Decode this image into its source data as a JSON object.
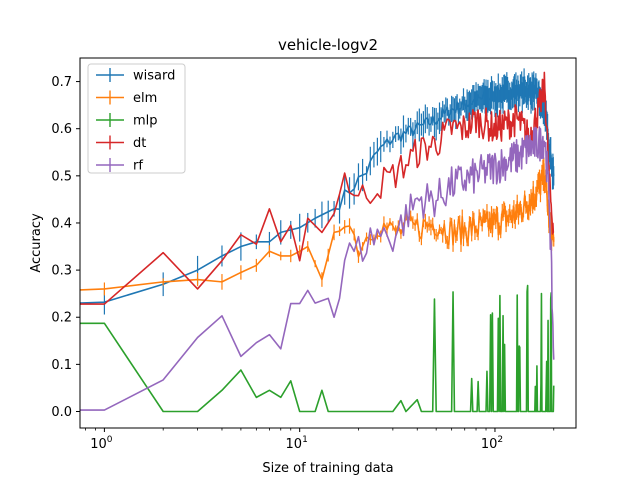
{
  "chart_data": {
    "type": "line",
    "title": "vehicle-logv2",
    "xlabel": "Size of training data",
    "ylabel": "Accuracy",
    "xscale": "log",
    "xlim": [
      0.75,
      260
    ],
    "ylim": [
      -0.035,
      0.75
    ],
    "x_ticks": [
      {
        "value": 1,
        "base": "10",
        "exp": "0"
      },
      {
        "value": 10,
        "base": "10",
        "exp": "1"
      },
      {
        "value": 100,
        "base": "10",
        "exp": "2"
      }
    ],
    "y_ticks": [
      0.0,
      0.1,
      0.2,
      0.3,
      0.4,
      0.5,
      0.6,
      0.7
    ],
    "y_tick_labels": [
      "0.0",
      "0.1",
      "0.2",
      "0.3",
      "0.4",
      "0.5",
      "0.6",
      "0.7"
    ],
    "grid": false,
    "legend_position": "upper-left",
    "series": [
      {
        "name": "wisard",
        "color": "#1f77b4",
        "anchors": [
          [
            0.75,
            0.23
          ],
          [
            1,
            0.232
          ],
          [
            2,
            0.27
          ],
          [
            3,
            0.3
          ],
          [
            4,
            0.33
          ],
          [
            5,
            0.35
          ],
          [
            6,
            0.36
          ],
          [
            7,
            0.36
          ],
          [
            8,
            0.38
          ],
          [
            10,
            0.39
          ],
          [
            12,
            0.41
          ],
          [
            15,
            0.43
          ],
          [
            18,
            0.47
          ],
          [
            22,
            0.51
          ],
          [
            25,
            0.55
          ],
          [
            30,
            0.58
          ],
          [
            40,
            0.6
          ],
          [
            50,
            0.62
          ],
          [
            60,
            0.64
          ],
          [
            80,
            0.66
          ],
          [
            100,
            0.67
          ],
          [
            130,
            0.68
          ],
          [
            160,
            0.68
          ],
          [
            180,
            0.64
          ],
          [
            190,
            0.55
          ],
          [
            200,
            0.5
          ]
        ],
        "noise_start": 16,
        "noise_amp": 0.015,
        "error_bar": 0.025
      },
      {
        "name": "elm",
        "color": "#ff7f0e",
        "anchors": [
          [
            0.75,
            0.258
          ],
          [
            1,
            0.26
          ],
          [
            2,
            0.275
          ],
          [
            3,
            0.28
          ],
          [
            4,
            0.275
          ],
          [
            5,
            0.295
          ],
          [
            6,
            0.31
          ],
          [
            7,
            0.34
          ],
          [
            8,
            0.33
          ],
          [
            9,
            0.33
          ],
          [
            10,
            0.34
          ],
          [
            11,
            0.35
          ],
          [
            13,
            0.28
          ],
          [
            15,
            0.38
          ],
          [
            17,
            0.42
          ],
          [
            20,
            0.35
          ],
          [
            25,
            0.4
          ],
          [
            30,
            0.38
          ],
          [
            40,
            0.39
          ],
          [
            50,
            0.4
          ],
          [
            60,
            0.38
          ],
          [
            80,
            0.39
          ],
          [
            100,
            0.4
          ],
          [
            130,
            0.42
          ],
          [
            160,
            0.46
          ],
          [
            180,
            0.5
          ],
          [
            190,
            0.4
          ],
          [
            200,
            0.36
          ]
        ],
        "noise_start": 16,
        "noise_amp": 0.03,
        "error_bar": 0.012
      },
      {
        "name": "mlp",
        "color": "#2ca02c",
        "anchors": [
          [
            0.75,
            0.187
          ],
          [
            1,
            0.187
          ],
          [
            2,
            0.0
          ],
          [
            3,
            0.0
          ],
          [
            4,
            0.045
          ],
          [
            5,
            0.088
          ],
          [
            6,
            0.03
          ],
          [
            7,
            0.045
          ],
          [
            8,
            0.03
          ],
          [
            9,
            0.065
          ],
          [
            10,
            0.0
          ],
          [
            12,
            0.0
          ],
          [
            13,
            0.045
          ],
          [
            14,
            0.0
          ],
          [
            20,
            0.0
          ],
          [
            30,
            0.0
          ],
          [
            33,
            0.023
          ],
          [
            35,
            0.0
          ],
          [
            40,
            0.025
          ],
          [
            42,
            0.0
          ],
          [
            200,
            0.055
          ]
        ],
        "spikes": [
          [
            44,
            0.26
          ],
          [
            47,
            0.1
          ],
          [
            52,
            0.24
          ],
          [
            56,
            0.15
          ],
          [
            60,
            0.28
          ],
          [
            66,
            0.22
          ],
          [
            72,
            0.28
          ],
          [
            78,
            0.12
          ],
          [
            84,
            0.26
          ],
          [
            92,
            0.27
          ],
          [
            100,
            0.2
          ],
          [
            110,
            0.24
          ],
          [
            120,
            0.18
          ],
          [
            135,
            0.22
          ],
          [
            150,
            0.1
          ],
          [
            170,
            0.05
          ]
        ],
        "error_bar": 0
      },
      {
        "name": "dt",
        "color": "#d62728",
        "anchors": [
          [
            0.75,
            0.228
          ],
          [
            1,
            0.228
          ],
          [
            2,
            0.337
          ],
          [
            3,
            0.26
          ],
          [
            4,
            0.32
          ],
          [
            5,
            0.375
          ],
          [
            6,
            0.355
          ],
          [
            7,
            0.43
          ],
          [
            8,
            0.36
          ],
          [
            9,
            0.395
          ],
          [
            10,
            0.32
          ],
          [
            11,
            0.41
          ],
          [
            13,
            0.38
          ],
          [
            15,
            0.42
          ],
          [
            17,
            0.5
          ],
          [
            20,
            0.45
          ],
          [
            25,
            0.48
          ],
          [
            30,
            0.5
          ],
          [
            40,
            0.55
          ],
          [
            50,
            0.57
          ],
          [
            60,
            0.6
          ],
          [
            70,
            0.6
          ],
          [
            80,
            0.62
          ],
          [
            100,
            0.6
          ],
          [
            130,
            0.62
          ],
          [
            150,
            0.58
          ],
          [
            170,
            0.65
          ],
          [
            180,
            0.69
          ],
          [
            190,
            0.48
          ],
          [
            200,
            0.38
          ]
        ],
        "noise_start": 17,
        "noise_amp": 0.035,
        "error_bar": 0
      },
      {
        "name": "rf",
        "color": "#9467bd",
        "anchors": [
          [
            0.75,
            0.003
          ],
          [
            1,
            0.003
          ],
          [
            2,
            0.067
          ],
          [
            3,
            0.157
          ],
          [
            4,
            0.203
          ],
          [
            5,
            0.117
          ],
          [
            6,
            0.146
          ],
          [
            7,
            0.163
          ],
          [
            8,
            0.133
          ],
          [
            9,
            0.229
          ],
          [
            10,
            0.229
          ],
          [
            11,
            0.257
          ],
          [
            12,
            0.23
          ],
          [
            14,
            0.24
          ],
          [
            15,
            0.2
          ],
          [
            16,
            0.24
          ],
          [
            17,
            0.33
          ],
          [
            20,
            0.34
          ],
          [
            25,
            0.38
          ],
          [
            30,
            0.37
          ],
          [
            40,
            0.45
          ],
          [
            50,
            0.45
          ],
          [
            60,
            0.48
          ],
          [
            80,
            0.5
          ],
          [
            100,
            0.52
          ],
          [
            130,
            0.54
          ],
          [
            150,
            0.56
          ],
          [
            170,
            0.57
          ],
          [
            180,
            0.58
          ],
          [
            190,
            0.45
          ],
          [
            200,
            0.11
          ]
        ],
        "noise_start": 17,
        "noise_amp": 0.04,
        "error_bar": 0
      }
    ]
  }
}
